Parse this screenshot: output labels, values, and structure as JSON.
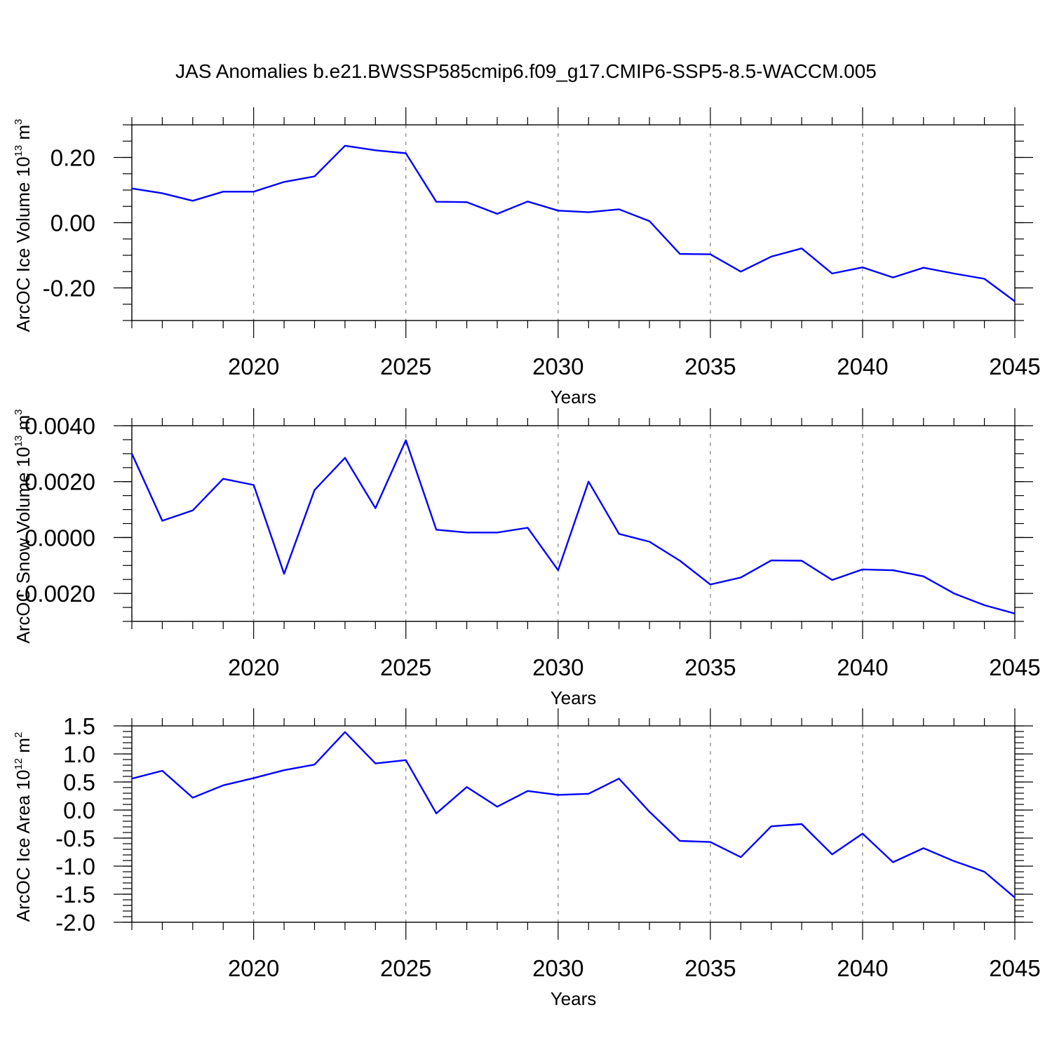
{
  "chart_data": {
    "title": "JAS Anomalies b.e21.BWSSP585cmip6.f09_g17.CMIP6-SSP5-8.5-WACCM.005",
    "line_color": "#0000ff",
    "grid_color": "#808080",
    "panels": [
      {
        "type": "line",
        "ylabel": "ArcOC Ice Volume 10",
        "ylabel_exp": "13",
        "ylabel_unit": " m",
        "ylabel_unit_exp": "3",
        "xlabel": "Years",
        "xlim": [
          2016,
          2045
        ],
        "ylim": [
          -0.3,
          0.3
        ],
        "yticks": [
          -0.2,
          0.0,
          0.2
        ],
        "ytick_labels": [
          "-0.20",
          "0.00",
          "0.20"
        ],
        "yminor_step": 0.05,
        "xticks": [
          2020,
          2025,
          2030,
          2035,
          2040,
          2045
        ],
        "xtick_labels": [
          "2020",
          "2025",
          "2030",
          "2035",
          "2040",
          "2045"
        ],
        "x": [
          2016,
          2017,
          2018,
          2019,
          2020,
          2021,
          2022,
          2023,
          2024,
          2025,
          2026,
          2027,
          2028,
          2029,
          2030,
          2031,
          2032,
          2033,
          2034,
          2035,
          2036,
          2037,
          2038,
          2039,
          2040,
          2041,
          2042,
          2043,
          2044,
          2045
        ],
        "values": [
          0.105,
          0.09,
          0.067,
          0.095,
          0.095,
          0.125,
          0.142,
          0.236,
          0.222,
          0.213,
          0.064,
          0.063,
          0.027,
          0.065,
          0.037,
          0.032,
          0.041,
          0.005,
          -0.096,
          -0.097,
          -0.15,
          -0.104,
          -0.079,
          -0.156,
          -0.137,
          -0.168,
          -0.138,
          -0.156,
          -0.172,
          -0.241
        ]
      },
      {
        "type": "line",
        "ylabel": "ArcOC Snow Volume 10",
        "ylabel_exp": "13",
        "ylabel_unit": " m",
        "ylabel_unit_exp": "3",
        "xlabel": "Years",
        "xlim": [
          2016,
          2045
        ],
        "ylim": [
          -0.003,
          0.004
        ],
        "yticks": [
          -0.002,
          0.0,
          0.002,
          0.004
        ],
        "ytick_labels": [
          "-0.0020",
          "0.0000",
          "0.0020",
          "0.0040"
        ],
        "yminor_step": 0.0005,
        "xticks": [
          2020,
          2025,
          2030,
          2035,
          2040,
          2045
        ],
        "xtick_labels": [
          "2020",
          "2025",
          "2030",
          "2035",
          "2040",
          "2045"
        ],
        "x": [
          2016,
          2017,
          2018,
          2019,
          2020,
          2021,
          2022,
          2023,
          2024,
          2025,
          2026,
          2027,
          2028,
          2029,
          2030,
          2031,
          2032,
          2033,
          2034,
          2035,
          2036,
          2037,
          2038,
          2039,
          2040,
          2041,
          2042,
          2043,
          2044,
          2045
        ],
        "values": [
          0.003,
          0.0006,
          0.00097,
          0.0021,
          0.00188,
          -0.0013,
          0.0017,
          0.00285,
          0.00105,
          0.00348,
          0.00028,
          0.00018,
          0.00018,
          0.00035,
          -0.00117,
          0.002,
          0.00013,
          -0.00015,
          -0.00083,
          -0.00168,
          -0.00143,
          -0.00082,
          -0.00083,
          -0.00152,
          -0.00114,
          -0.00117,
          -0.00139,
          -0.002,
          -0.00242,
          -0.00272
        ]
      },
      {
        "type": "line",
        "ylabel": "ArcOC Ice Area 10",
        "ylabel_exp": "12",
        "ylabel_unit": " m",
        "ylabel_unit_exp": "2",
        "xlabel": "Years",
        "xlim": [
          2016,
          2045
        ],
        "ylim": [
          -2.0,
          1.5
        ],
        "yticks": [
          -2.0,
          -1.5,
          -1.0,
          -0.5,
          0.0,
          0.5,
          1.0,
          1.5
        ],
        "ytick_labels": [
          "-2.0",
          "-1.5",
          "-1.0",
          "-0.5",
          "0.0",
          "0.5",
          "1.0",
          "1.5"
        ],
        "yminor_step": 0.1,
        "xticks": [
          2020,
          2025,
          2030,
          2035,
          2040,
          2045
        ],
        "xtick_labels": [
          "2020",
          "2025",
          "2030",
          "2035",
          "2040",
          "2045"
        ],
        "x": [
          2016,
          2017,
          2018,
          2019,
          2020,
          2021,
          2022,
          2023,
          2024,
          2025,
          2026,
          2027,
          2028,
          2029,
          2030,
          2031,
          2032,
          2033,
          2034,
          2035,
          2036,
          2037,
          2038,
          2039,
          2040,
          2041,
          2042,
          2043,
          2044,
          2045
        ],
        "values": [
          0.56,
          0.7,
          0.22,
          0.44,
          0.57,
          0.71,
          0.81,
          1.39,
          0.83,
          0.89,
          -0.06,
          0.41,
          0.06,
          0.34,
          0.27,
          0.29,
          0.56,
          -0.03,
          -0.55,
          -0.57,
          -0.84,
          -0.29,
          -0.25,
          -0.79,
          -0.42,
          -0.93,
          -0.68,
          -0.91,
          -1.1,
          -1.56
        ]
      }
    ]
  }
}
